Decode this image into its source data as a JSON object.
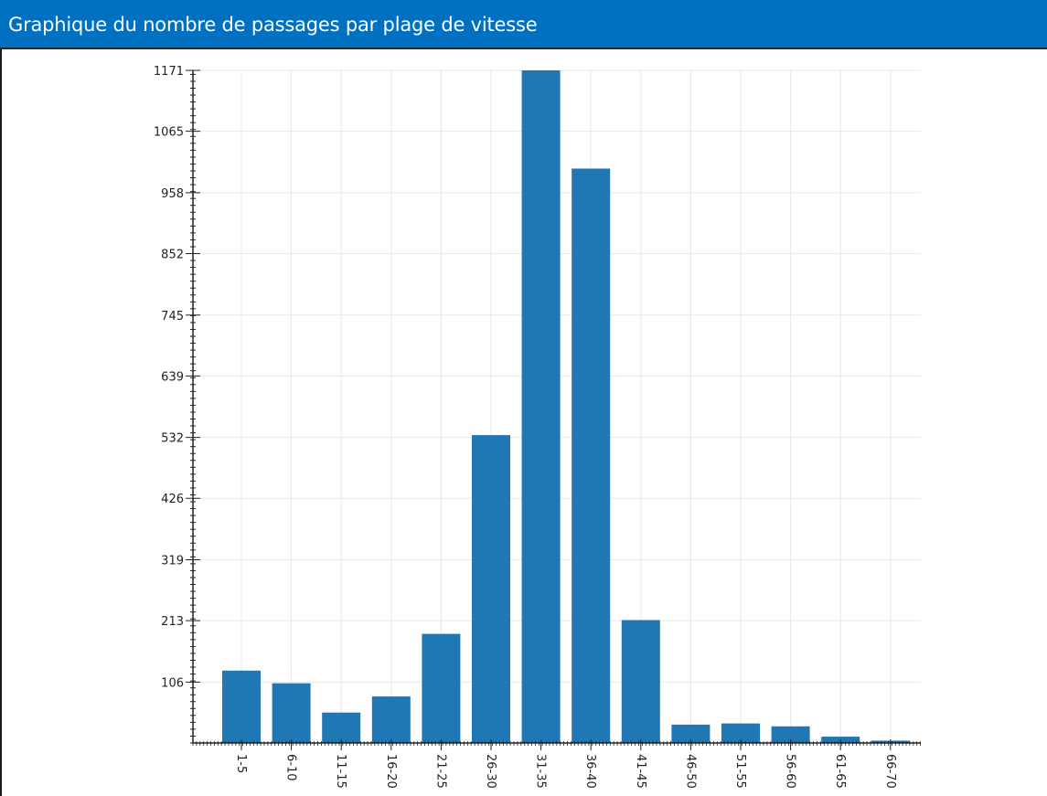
{
  "header": {
    "title": "Graphique du nombre de passages par plage de vitesse"
  },
  "colors": {
    "header_bg": "#0070c0",
    "header_text": "#ffffff",
    "bar": "#1f77b4",
    "grid": "#e8e8e8",
    "axis": "#222222"
  },
  "chart_data": {
    "type": "bar",
    "title": "",
    "xlabel": "",
    "ylabel": "",
    "categories": [
      "1-5",
      "6-10",
      "11-15",
      "16-20",
      "21-25",
      "26-30",
      "31-35",
      "36-40",
      "41-45",
      "46-50",
      "51-55",
      "56-60",
      "61-65",
      "66-70"
    ],
    "values": [
      126,
      104,
      53,
      81,
      190,
      536,
      1171,
      1000,
      214,
      32,
      34,
      29,
      11,
      4
    ],
    "ylim": [
      0,
      1171
    ],
    "yticks": [
      "106",
      "213",
      "319",
      "426",
      "532",
      "639",
      "745",
      "852",
      "958",
      "1065",
      "1171"
    ],
    "ytick_values": [
      106,
      213,
      319,
      426,
      532,
      639,
      745,
      852,
      958,
      1065,
      1171
    ],
    "grid": true,
    "legend": "none"
  }
}
